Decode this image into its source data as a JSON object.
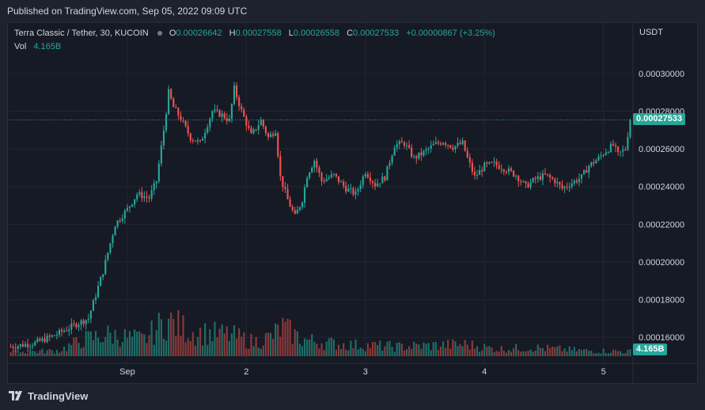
{
  "header": {
    "published": "Published on TradingView.com, Sep 05, 2022 09:09 UTC"
  },
  "legend": {
    "symbol": "Terra Classic / Tether, 30, KUCOIN",
    "o_key": "O",
    "o_val": "0.00026642",
    "h_key": "H",
    "h_val": "0.00027558",
    "l_key": "L",
    "l_val": "0.00026558",
    "c_key": "C",
    "c_val": "0.00027533",
    "change": "+0.00000867 (+3.25%)",
    "vol_key": "Vol",
    "vol_val": "4.165B"
  },
  "axis": {
    "unit": "USDT"
  },
  "badges": {
    "price": "0.00027533",
    "volume": "4.165B"
  },
  "footer": {
    "brand": "TradingView"
  },
  "colors": {
    "up": "#26a69a",
    "down": "#ef5350",
    "volume_up": "#1f6e66",
    "volume_down": "#8b3a3a",
    "background": "#161a25",
    "grid": "#232632"
  },
  "chart_data": {
    "type": "candlestick",
    "title": "Terra Classic / Tether, 30, KUCOIN",
    "interval": "30",
    "y_unit": "USDT",
    "y_ticks": [
      0.00016,
      0.00018,
      0.0002,
      0.00022,
      0.00024,
      0.00026,
      0.00028,
      0.0003
    ],
    "y_tick_labels": [
      "0.00016000",
      "0.00018000",
      "0.00020000",
      "0.00022000",
      "0.00024000",
      "0.00026000",
      "0.00028000",
      "0.00030000"
    ],
    "x_labels": [
      "Sep",
      "2",
      "3",
      "4",
      "5"
    ],
    "x_label_bar_index": [
      40,
      89,
      138,
      187,
      236
    ],
    "bars_per_day": 49,
    "start_bar": -8,
    "bar_count": 256,
    "last_price": 0.00027533,
    "last_volume": "4.165B",
    "close_path": [
      [
        0,
        0.000155
      ],
      [
        10,
        0.000157
      ],
      [
        18,
        0.000161
      ],
      [
        27,
        0.000167
      ],
      [
        32,
        0.00017
      ],
      [
        38,
        0.000195
      ],
      [
        43,
        0.00022
      ],
      [
        48,
        0.000228
      ],
      [
        52,
        0.000236
      ],
      [
        57,
        0.000234
      ],
      [
        60,
        0.000243
      ],
      [
        63,
        0.00027
      ],
      [
        65,
        0.00029
      ],
      [
        67,
        0.000282
      ],
      [
        70,
        0.000276
      ],
      [
        74,
        0.000266
      ],
      [
        78,
        0.000263
      ],
      [
        83,
        0.00028
      ],
      [
        87,
        0.000278
      ],
      [
        90,
        0.000275
      ],
      [
        92,
        0.000292
      ],
      [
        95,
        0.00028
      ],
      [
        99,
        0.000267
      ],
      [
        103,
        0.000275
      ],
      [
        106,
        0.000266
      ],
      [
        109,
        0.00027
      ],
      [
        111,
        0.000245
      ],
      [
        114,
        0.000233
      ],
      [
        117,
        0.000224
      ],
      [
        120,
        0.000233
      ],
      [
        122,
        0.000246
      ],
      [
        125,
        0.000254
      ],
      [
        128,
        0.000243
      ],
      [
        133,
        0.000246
      ],
      [
        138,
        0.000239
      ],
      [
        142,
        0.000236
      ],
      [
        146,
        0.000248
      ],
      [
        150,
        0.000241
      ],
      [
        154,
        0.000245
      ],
      [
        158,
        0.000262
      ],
      [
        162,
        0.000263
      ],
      [
        166,
        0.000255
      ],
      [
        170,
        0.000258
      ],
      [
        174,
        0.000262
      ],
      [
        178,
        0.000264
      ],
      [
        182,
        0.000261
      ],
      [
        186,
        0.000263
      ],
      [
        188,
        0.000255
      ],
      [
        191,
        0.000245
      ],
      [
        195,
        0.000251
      ],
      [
        199,
        0.000252
      ],
      [
        204,
        0.000249
      ],
      [
        208,
        0.000246
      ],
      [
        212,
        0.00024
      ],
      [
        216,
        0.000244
      ],
      [
        220,
        0.000246
      ],
      [
        224,
        0.000243
      ],
      [
        227,
        0.000239
      ],
      [
        231,
        0.000242
      ],
      [
        235,
        0.000245
      ],
      [
        238,
        0.000251
      ],
      [
        242,
        0.000255
      ],
      [
        245,
        0.000259
      ],
      [
        248,
        0.000262
      ],
      [
        250,
        0.000257
      ],
      [
        253,
        0.00026
      ],
      [
        255,
        0.00027533
      ]
    ],
    "volume_path": [
      [
        0,
        0.08
      ],
      [
        20,
        0.12
      ],
      [
        30,
        0.35
      ],
      [
        40,
        0.45
      ],
      [
        55,
        0.35
      ],
      [
        64,
        0.75
      ],
      [
        75,
        0.5
      ],
      [
        90,
        0.45
      ],
      [
        100,
        0.3
      ],
      [
        107,
        0.4
      ],
      [
        112,
        0.6
      ],
      [
        120,
        0.35
      ],
      [
        135,
        0.25
      ],
      [
        160,
        0.2
      ],
      [
        187,
        0.25
      ],
      [
        200,
        0.15
      ],
      [
        215,
        0.18
      ],
      [
        235,
        0.12
      ],
      [
        255,
        0.1
      ]
    ]
  }
}
